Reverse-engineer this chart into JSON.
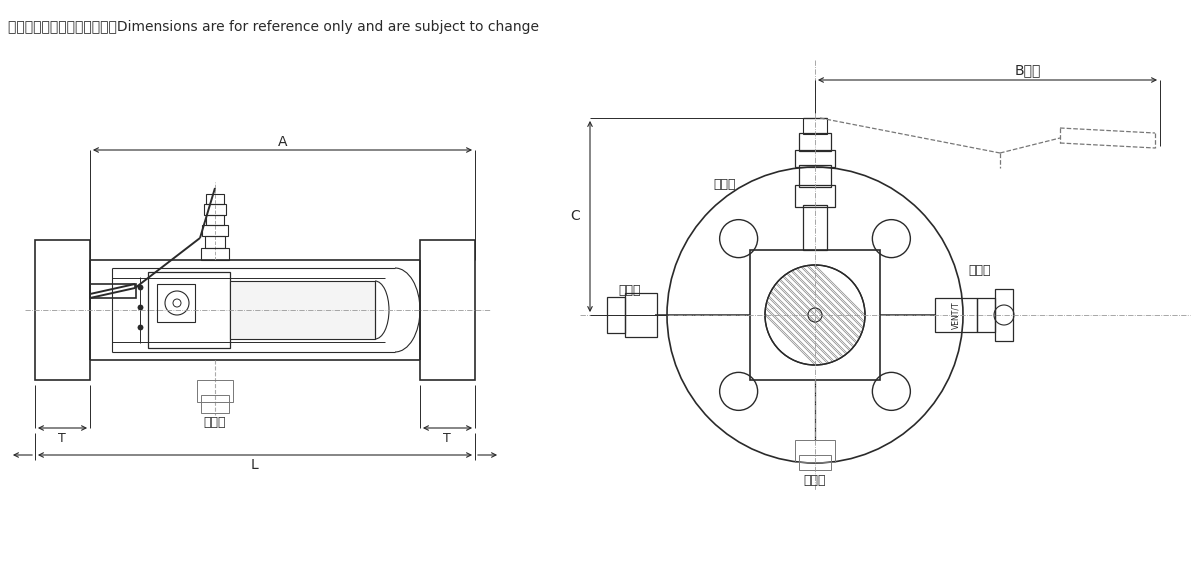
{
  "bg_color": "#ffffff",
  "line_color": "#2a2a2a",
  "dash_color": "#777777",
  "center_color": "#999999",
  "title_text": "尺寸仅供参考，可能有变动。Dimensions are for reference only and are subject to change",
  "dim_A_label": "A",
  "dim_B_label": "B打开",
  "dim_C_label": "C",
  "dim_L_label": "L",
  "dim_T_label": "T",
  "label_paifangkou": "排放口",
  "label_jiezhi_top": "截止阀",
  "label_jiezhi_left": "截止阀",
  "label_paifang_right": "排放阀",
  "label_VENT": "VENT/T"
}
